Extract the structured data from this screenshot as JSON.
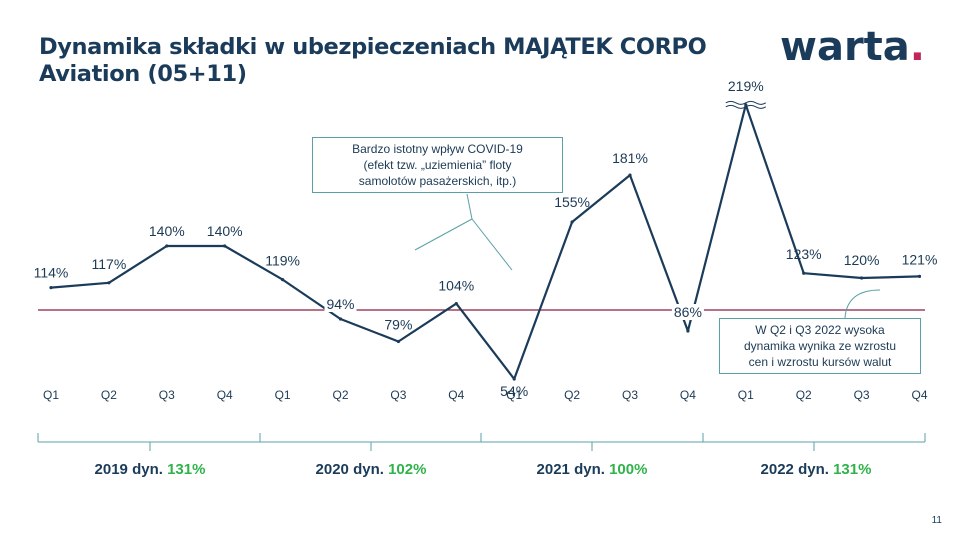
{
  "title_lines": [
    "Dynamika składki w ubezpieczeniach MAJĄTEK CORPO",
    "Aviation (05+11)"
  ],
  "logo": {
    "text": "warta",
    "dot": ".",
    "accent_color": "#c0265a"
  },
  "page_number": "11",
  "chart_data": {
    "type": "line",
    "categories": [
      "Q1",
      "Q2",
      "Q3",
      "Q4",
      "Q1",
      "Q2",
      "Q3",
      "Q4",
      "Q1",
      "Q2",
      "Q3",
      "Q4",
      "Q1",
      "Q2",
      "Q3",
      "Q4"
    ],
    "values": [
      114,
      117,
      140,
      140,
      119,
      94,
      79,
      104,
      54,
      155,
      181,
      86,
      219,
      123,
      120,
      121
    ],
    "labels": [
      "114%",
      "117%",
      "140%",
      "140%",
      "119%",
      "94%",
      "79%",
      "104%",
      "54%",
      "155%",
      "181%",
      "86%",
      "219%",
      "123%",
      "120%",
      "121%"
    ],
    "reference_line": 100,
    "axis_break_near": "219%",
    "series_color": "#1b3b5a",
    "reference_color": "#8b1f3f",
    "years": [
      {
        "label": "2019 dyn.",
        "value": "131%"
      },
      {
        "label": "2020 dyn.",
        "value": "102%"
      },
      {
        "label": "2021 dyn.",
        "value": "100%"
      },
      {
        "label": "2022 dyn.",
        "value": "131%"
      }
    ],
    "value_color": "#2fb34a",
    "annotations": [
      {
        "lines": [
          "Bardzo istotny wpływ COVID-19",
          "(efekt tzw. „uziemienia” floty",
          "samolotów pasażerskich, itp.)"
        ]
      },
      {
        "lines": [
          "W Q2 i Q3 2022 wysoka",
          "dynamika wynika ze wzrostu",
          "cen i wzrostu kursów walut"
        ]
      }
    ]
  }
}
